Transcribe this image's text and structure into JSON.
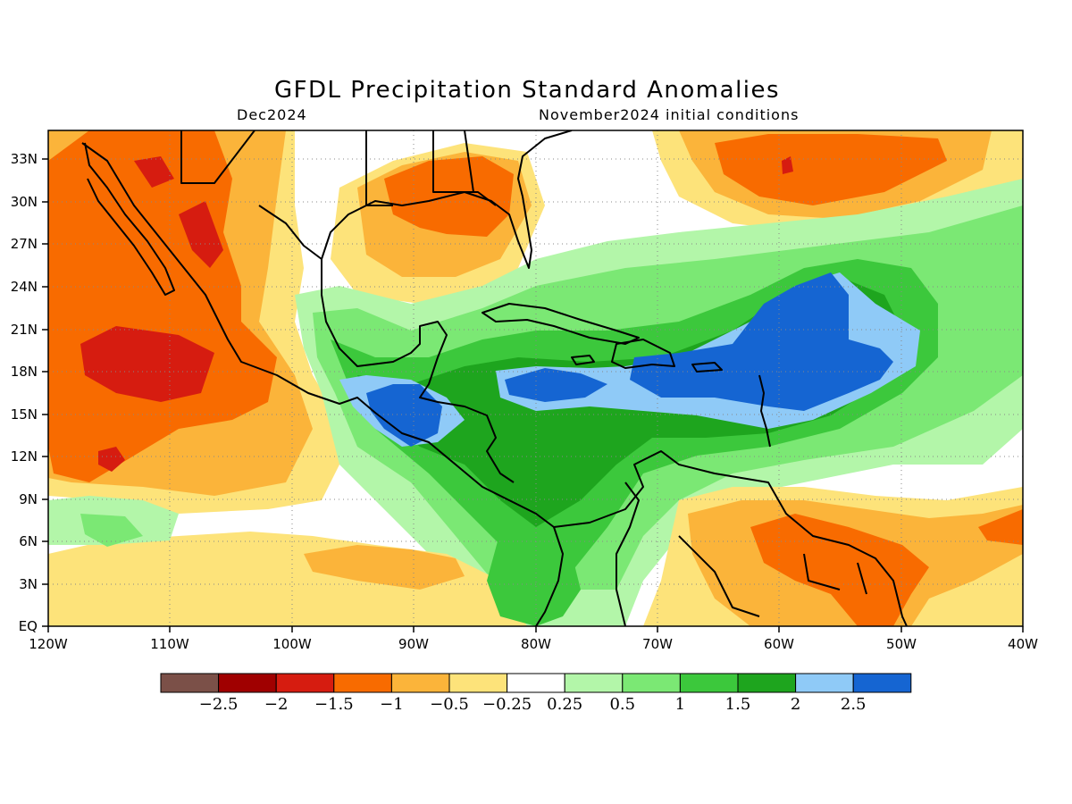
{
  "title": "GFDL Precipitation Standard Anomalies",
  "subtitle_left": "Dec2024",
  "subtitle_right": "November2024 initial conditions",
  "map": {
    "lon_range": [
      -120,
      -40
    ],
    "lat_range": [
      0,
      35
    ],
    "lon_tick_labels": [
      "120W",
      "110W",
      "100W",
      "90W",
      "80W",
      "70W",
      "60W",
      "50W",
      "40W"
    ],
    "lat_tick_labels": [
      "EQ",
      "3N",
      "6N",
      "9N",
      "12N",
      "15N",
      "18N",
      "21N",
      "24N",
      "27N",
      "30N",
      "33N"
    ],
    "grid": true,
    "grid_lons_interior": [
      -110,
      -100,
      -90,
      -80,
      -70,
      -60,
      -50
    ],
    "grid_lats_interior": [
      3,
      6,
      9,
      12,
      15,
      18,
      21,
      24,
      27,
      30,
      33
    ]
  },
  "legend": {
    "colors": [
      "#7b5048",
      "#a00000",
      "#d61c10",
      "#f86b00",
      "#fbb43a",
      "#fde37a",
      "#ffffff",
      "#b3f6a9",
      "#7be874",
      "#3cc83c",
      "#1ea51e",
      "#8fcaf7",
      "#1565d2"
    ],
    "labels": [
      "−2.5",
      "−2",
      "−1.5",
      "−1",
      "−0.5",
      "−0.25",
      "0.25",
      "0.5",
      "1",
      "1.5",
      "2",
      "2.5"
    ]
  },
  "anomaly_regions": [
    {
      "name": "north-pacific-mexico-dry",
      "level": "orange",
      "color": "#f86b00"
    },
    {
      "name": "mexico-deep-dry",
      "level": "red",
      "color": "#d61c10"
    },
    {
      "name": "gulf-dry",
      "level": "orange",
      "color": "#f86b00"
    },
    {
      "name": "atlantic-dry",
      "level": "orange",
      "color": "#f86b00"
    },
    {
      "name": "guianas-dry",
      "level": "orange",
      "color": "#f86b00"
    },
    {
      "name": "caribbean-wet",
      "level": "green",
      "color": "#3cc83c"
    },
    {
      "name": "atlantic-wet-core",
      "level": "blue",
      "color": "#1565d2"
    },
    {
      "name": "central-america-wet-core",
      "level": "blue",
      "color": "#1565d2"
    }
  ]
}
